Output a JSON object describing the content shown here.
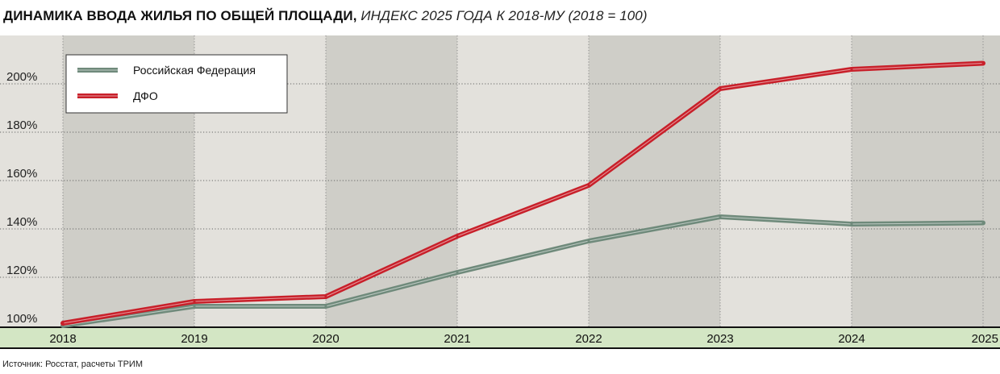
{
  "title": {
    "bold": "ДИНАМИКА ВВОДА ЖИЛЬЯ ПО ОБЩЕЙ ПЛОЩАДИ,",
    "italic": "ИНДЕКС 2025 ГОДА К 2018-МУ (2018 = 100)"
  },
  "source": "Источник: Росстат, расчеты ТРИМ",
  "colors": {
    "rf": "#6f8a7b",
    "dfo": "#c8202a",
    "plot_bg": "#e3e1dc",
    "band_bg": "#cfcec8",
    "axis_band": "#d3e6c4"
  },
  "chart_data": {
    "type": "line",
    "categories": [
      "2018",
      "2019",
      "2020",
      "2021",
      "2022",
      "2023",
      "2024",
      "2025"
    ],
    "y_ticks": [
      "100%",
      "120%",
      "140%",
      "160%",
      "180%",
      "200%"
    ],
    "ylim": [
      100,
      215
    ],
    "grid": true,
    "legend_position": "top-left",
    "series": [
      {
        "name": "Российская Федерация",
        "key": "rf",
        "values": [
          100,
          108,
          108,
          122,
          135,
          145,
          142,
          142.5
        ]
      },
      {
        "name": "ДФО",
        "key": "dfo",
        "values": [
          101,
          110,
          112,
          137,
          158,
          198,
          206,
          208.5
        ]
      }
    ]
  }
}
